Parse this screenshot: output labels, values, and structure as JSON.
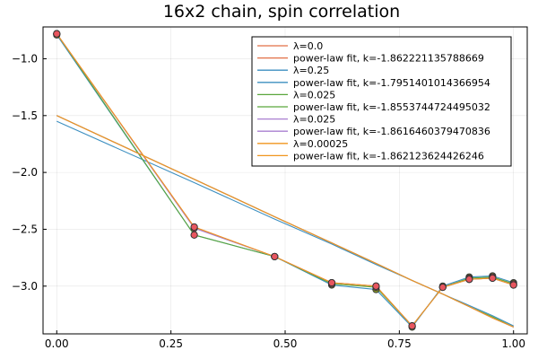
{
  "chart_data": {
    "type": "line",
    "title": "16x2 chain, spin correlation",
    "xlabel": "",
    "ylabel": "",
    "xlim": [
      -0.03,
      1.03
    ],
    "ylim": [
      -3.42,
      -0.72
    ],
    "grid": true,
    "legend_position": "top-right",
    "x_ticks": [
      0.0,
      0.25,
      0.5,
      0.75,
      1.0
    ],
    "x_tick_labels": [
      "0.00",
      "0.25",
      "0.50",
      "0.75",
      "1.00"
    ],
    "y_ticks": [
      -1.0,
      -1.5,
      -2.0,
      -2.5,
      -3.0
    ],
    "y_tick_labels": [
      "−1.0",
      "−1.5",
      "−2.0",
      "−2.5",
      "−3.0"
    ],
    "x": [
      0.0,
      0.301,
      0.477,
      0.602,
      0.699,
      0.778,
      0.845,
      0.903,
      0.954,
      1.0
    ],
    "series": [
      {
        "name": "λ=0.0",
        "kind": "data",
        "color": "#e26f46",
        "values": [
          -0.78,
          -2.48,
          -2.74,
          -2.97,
          -3.0,
          -3.35,
          -3.01,
          -2.94,
          -2.93,
          -2.99
        ]
      },
      {
        "name": "power-law fit, k=-1.862221135788669",
        "kind": "fit",
        "color": "#e26f46",
        "values": [
          -1.5,
          -2.06,
          -2.39,
          -2.62,
          -2.8,
          -2.95,
          -3.07,
          -3.18,
          -3.28,
          -3.36
        ]
      },
      {
        "name": "λ=0.25",
        "kind": "data",
        "color": "#3c8fc0",
        "values": [
          -0.79,
          -2.55,
          -2.74,
          -2.99,
          -3.03,
          -3.36,
          -3.0,
          -2.92,
          -2.91,
          -2.97
        ]
      },
      {
        "name": "power-law fit, k=-1.7951401014366954",
        "kind": "fit",
        "color": "#3c8fc0",
        "values": [
          -1.55,
          -2.09,
          -2.41,
          -2.63,
          -2.81,
          -2.95,
          -3.07,
          -3.17,
          -3.26,
          -3.35
        ]
      },
      {
        "name": "λ=0.025",
        "kind": "data",
        "color": "#5aa63c",
        "values": [
          -0.78,
          -2.55,
          -2.74,
          -2.98,
          -3.01,
          -3.35,
          -3.01,
          -2.93,
          -2.92,
          -2.98
        ]
      },
      {
        "name": "power-law fit, k=-1.8553744724495032",
        "kind": "fit",
        "color": "#5aa63c",
        "values": [
          -1.5,
          -2.06,
          -2.39,
          -2.62,
          -2.8,
          -2.95,
          -3.07,
          -3.18,
          -3.27,
          -3.36
        ]
      },
      {
        "name": "λ=0.025",
        "kind": "data",
        "color": "#a97fd0",
        "values": [
          -0.78,
          -2.49,
          -2.74,
          -2.97,
          -3.0,
          -3.35,
          -3.01,
          -2.94,
          -2.93,
          -2.99
        ]
      },
      {
        "name": "power-law fit, k=-1.8616460379470836",
        "kind": "fit",
        "color": "#a97fd0",
        "values": [
          -1.5,
          -2.06,
          -2.39,
          -2.62,
          -2.8,
          -2.95,
          -3.07,
          -3.18,
          -3.28,
          -3.36
        ]
      },
      {
        "name": "λ=0.00025",
        "kind": "data",
        "color": "#f0961e",
        "values": [
          -0.78,
          -2.48,
          -2.74,
          -2.97,
          -3.0,
          -3.35,
          -3.01,
          -2.94,
          -2.93,
          -2.99
        ]
      },
      {
        "name": "power-law fit, k=-1.862123624426246",
        "kind": "fit",
        "color": "#f0961e",
        "values": [
          -1.5,
          -2.06,
          -2.39,
          -2.62,
          -2.8,
          -2.95,
          -3.07,
          -3.18,
          -3.28,
          -3.36
        ]
      }
    ],
    "marker_colors": {
      "fill": "#e8565f",
      "stroke": "#333333",
      "lower_fill": "#7d8f2a"
    }
  }
}
